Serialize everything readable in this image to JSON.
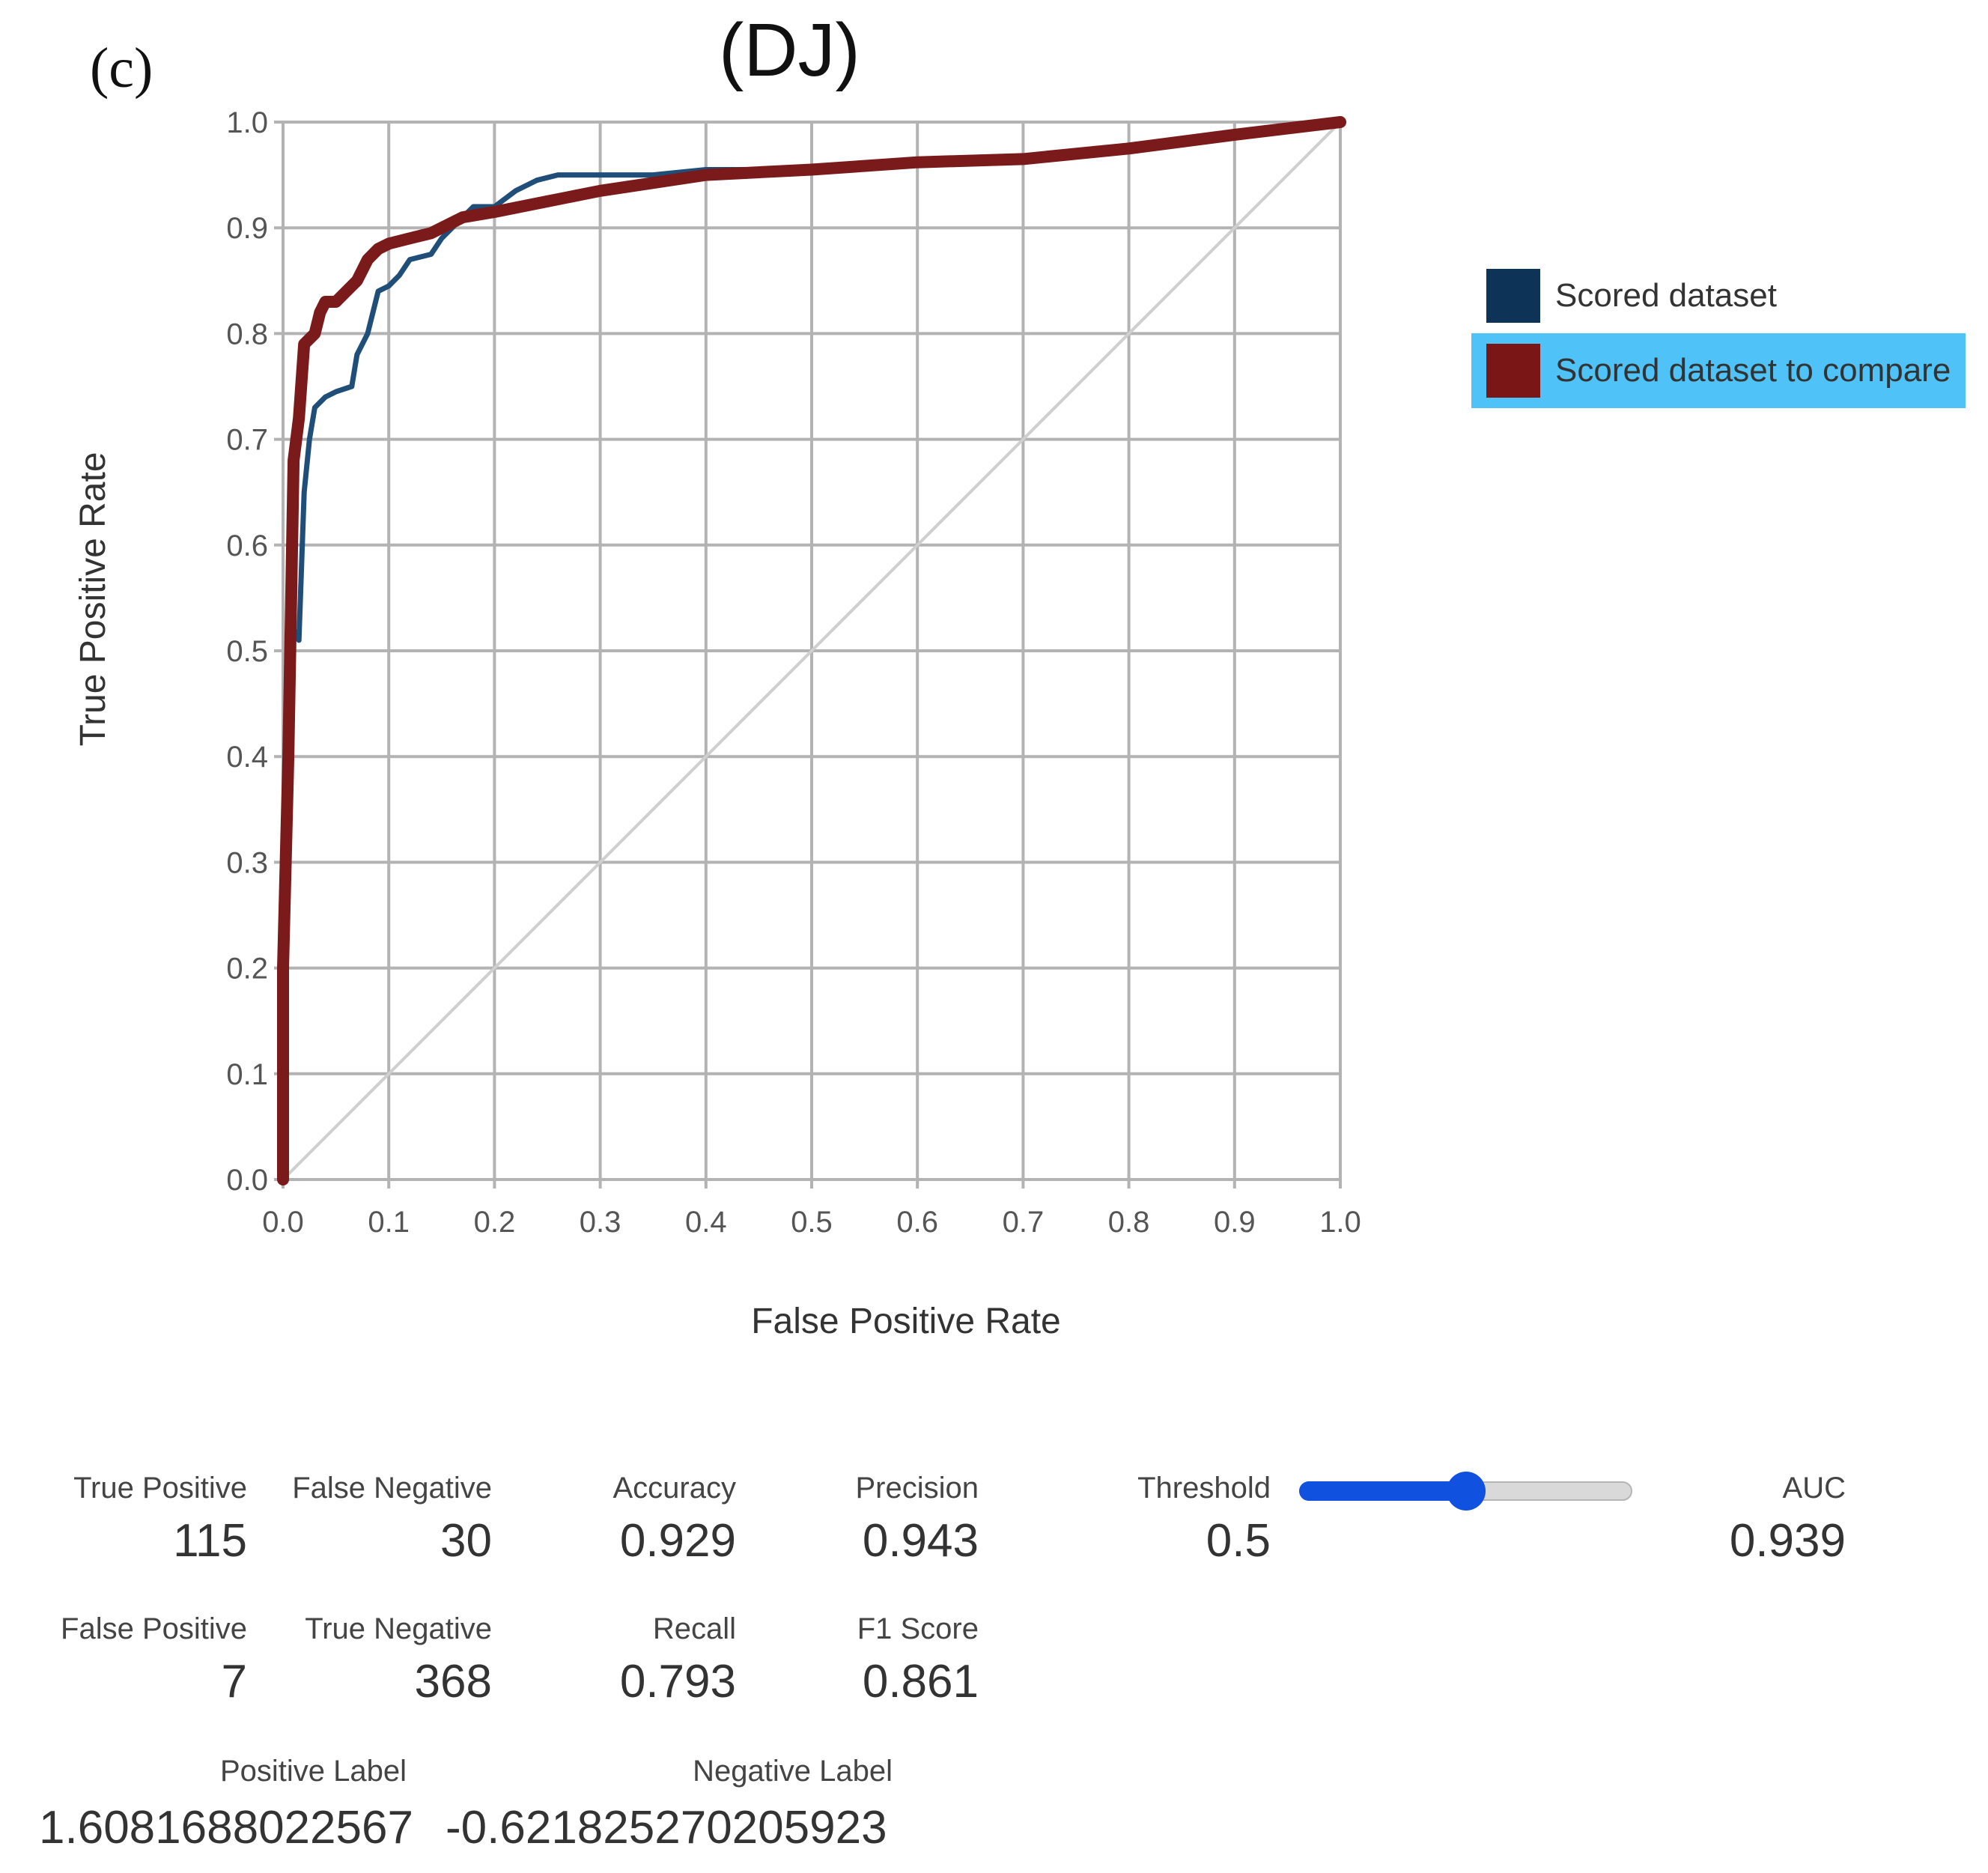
{
  "panel_label": "(c)",
  "colors": {
    "scored": "#1f4e79",
    "compare": "#7b1a1a",
    "legend_scored": "#0d3356",
    "legend_compare": "#7a1616",
    "diagonal": "#cfcfcf",
    "grid": "#b3b3b3",
    "legend_highlight": "#4fc3f7",
    "slider": "#1151e0"
  },
  "chart_data": {
    "type": "line",
    "title": "(DJ)",
    "xlabel": "False Positive Rate",
    "ylabel": "True Positive Rate",
    "xlim": [
      0,
      1
    ],
    "ylim": [
      0,
      1
    ],
    "grid": true,
    "x_ticks": [
      "0.0",
      "0.1",
      "0.2",
      "0.3",
      "0.4",
      "0.5",
      "0.6",
      "0.7",
      "0.8",
      "0.9",
      "1.0"
    ],
    "y_ticks": [
      "0.0",
      "0.1",
      "0.2",
      "0.3",
      "0.4",
      "0.5",
      "0.6",
      "0.7",
      "0.8",
      "0.9",
      "1.0"
    ],
    "legend_position": "right",
    "series": [
      {
        "name": "Scored dataset",
        "points": [
          [
            0,
            0
          ],
          [
            0,
            0.3
          ],
          [
            0.005,
            0.45
          ],
          [
            0.01,
            0.52
          ],
          [
            0.015,
            0.51
          ],
          [
            0.02,
            0.65
          ],
          [
            0.025,
            0.7
          ],
          [
            0.03,
            0.73
          ],
          [
            0.04,
            0.74
          ],
          [
            0.05,
            0.745
          ],
          [
            0.065,
            0.75
          ],
          [
            0.07,
            0.78
          ],
          [
            0.08,
            0.8
          ],
          [
            0.09,
            0.84
          ],
          [
            0.1,
            0.845
          ],
          [
            0.11,
            0.855
          ],
          [
            0.12,
            0.87
          ],
          [
            0.14,
            0.875
          ],
          [
            0.15,
            0.89
          ],
          [
            0.16,
            0.9
          ],
          [
            0.18,
            0.92
          ],
          [
            0.2,
            0.92
          ],
          [
            0.22,
            0.935
          ],
          [
            0.24,
            0.945
          ],
          [
            0.26,
            0.95
          ],
          [
            0.3,
            0.95
          ],
          [
            0.35,
            0.95
          ],
          [
            0.4,
            0.955
          ],
          [
            0.5,
            0.955
          ],
          [
            0.55,
            0.96
          ],
          [
            0.6,
            0.962
          ],
          [
            0.7,
            0.965
          ],
          [
            0.8,
            0.975
          ],
          [
            0.9,
            0.985
          ],
          [
            1,
            1
          ]
        ]
      },
      {
        "name": "Scored dataset to compare",
        "points": [
          [
            0,
            0
          ],
          [
            0,
            0.2
          ],
          [
            0.005,
            0.4
          ],
          [
            0.01,
            0.68
          ],
          [
            0.015,
            0.72
          ],
          [
            0.02,
            0.79
          ],
          [
            0.03,
            0.8
          ],
          [
            0.035,
            0.82
          ],
          [
            0.04,
            0.83
          ],
          [
            0.05,
            0.83
          ],
          [
            0.06,
            0.84
          ],
          [
            0.07,
            0.85
          ],
          [
            0.08,
            0.87
          ],
          [
            0.09,
            0.88
          ],
          [
            0.1,
            0.885
          ],
          [
            0.12,
            0.89
          ],
          [
            0.14,
            0.895
          ],
          [
            0.17,
            0.91
          ],
          [
            0.2,
            0.915
          ],
          [
            0.25,
            0.925
          ],
          [
            0.3,
            0.935
          ],
          [
            0.4,
            0.95
          ],
          [
            0.5,
            0.955
          ],
          [
            0.6,
            0.962
          ],
          [
            0.7,
            0.965
          ],
          [
            0.8,
            0.975
          ],
          [
            0.9,
            0.988
          ],
          [
            1,
            1
          ]
        ]
      }
    ]
  },
  "metrics": {
    "true_positive": {
      "label": "True Positive",
      "value": "115"
    },
    "false_negative": {
      "label": "False Negative",
      "value": "30"
    },
    "false_positive": {
      "label": "False Positive",
      "value": "7"
    },
    "true_negative": {
      "label": "True Negative",
      "value": "368"
    },
    "accuracy": {
      "label": "Accuracy",
      "value": "0.929"
    },
    "recall": {
      "label": "Recall",
      "value": "0.793"
    },
    "precision": {
      "label": "Precision",
      "value": "0.943"
    },
    "f1_score": {
      "label": "F1 Score",
      "value": "0.861"
    },
    "threshold": {
      "label": "Threshold",
      "value": "0.5"
    },
    "auc": {
      "label": "AUC",
      "value": "0.939"
    },
    "positive_label": {
      "label": "Positive Label",
      "value": "1.6081688022567"
    },
    "negative_label": {
      "label": "Negative Label",
      "value": "-0.621825270205923"
    }
  },
  "threshold_slider": {
    "min": 0,
    "max": 1,
    "value": 0.5
  }
}
